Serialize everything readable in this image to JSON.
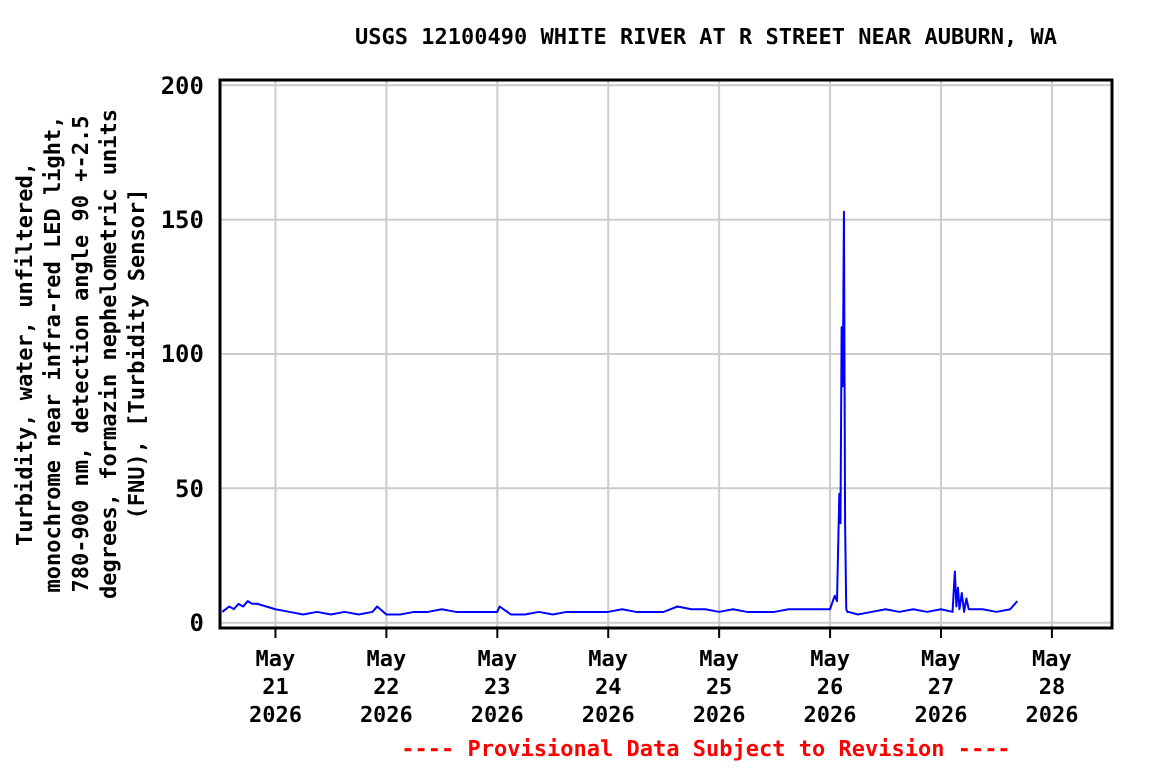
{
  "chart_data": {
    "type": "line",
    "title": "USGS 12100490 WHITE RIVER AT R STREET NEAR AUBURN, WA",
    "ylabel": "Turbidity, water, unfiltered,\nmonochrome near infra-red LED light,\n780-900 nm, detection angle 90 +-2.5\ndegrees, formazin nephelometric units\n(FNU), [Turbidity Sensor]",
    "annotations": [
      "---- Provisional Data Subject to Revision ----"
    ],
    "x": [
      "2026-05-20T12:30",
      "2026-05-20T14:00",
      "2026-05-20T15:00",
      "2026-05-20T16:00",
      "2026-05-20T17:00",
      "2026-05-20T18:00",
      "2026-05-20T19:00",
      "2026-05-20T20:00",
      "2026-05-20T22:00",
      "2026-05-21T00:00",
      "2026-05-21T03:00",
      "2026-05-21T06:00",
      "2026-05-21T09:00",
      "2026-05-21T12:00",
      "2026-05-21T15:00",
      "2026-05-21T18:00",
      "2026-05-21T21:00",
      "2026-05-21T22:00",
      "2026-05-22T00:00",
      "2026-05-22T03:00",
      "2026-05-22T06:00",
      "2026-05-22T09:00",
      "2026-05-22T12:00",
      "2026-05-22T15:00",
      "2026-05-22T18:00",
      "2026-05-22T21:00",
      "2026-05-23T00:00",
      "2026-05-23T00:30",
      "2026-05-23T03:00",
      "2026-05-23T06:00",
      "2026-05-23T09:00",
      "2026-05-23T12:00",
      "2026-05-23T15:00",
      "2026-05-23T18:00",
      "2026-05-23T21:00",
      "2026-05-24T00:00",
      "2026-05-24T03:00",
      "2026-05-24T06:00",
      "2026-05-24T09:00",
      "2026-05-24T12:00",
      "2026-05-24T15:00",
      "2026-05-24T18:00",
      "2026-05-24T21:00",
      "2026-05-25T00:00",
      "2026-05-25T03:00",
      "2026-05-25T06:00",
      "2026-05-25T09:00",
      "2026-05-25T12:00",
      "2026-05-25T15:00",
      "2026-05-25T18:00",
      "2026-05-25T21:00",
      "2026-05-26T00:00",
      "2026-05-26T01:00",
      "2026-05-26T01:30",
      "2026-05-26T02:00",
      "2026-05-26T02:15",
      "2026-05-26T02:30",
      "2026-05-26T02:45",
      "2026-05-26T03:00",
      "2026-05-26T03:15",
      "2026-05-26T03:30",
      "2026-05-26T03:45",
      "2026-05-26T04:00",
      "2026-05-26T06:00",
      "2026-05-26T09:00",
      "2026-05-26T12:00",
      "2026-05-26T15:00",
      "2026-05-26T18:00",
      "2026-05-26T21:00",
      "2026-05-27T00:00",
      "2026-05-27T02:30",
      "2026-05-27T03:00",
      "2026-05-27T03:20",
      "2026-05-27T03:40",
      "2026-05-27T04:00",
      "2026-05-27T04:30",
      "2026-05-27T05:00",
      "2026-05-27T05:30",
      "2026-05-27T06:00",
      "2026-05-27T07:00",
      "2026-05-27T09:00",
      "2026-05-27T12:00",
      "2026-05-27T15:00",
      "2026-05-27T16:30"
    ],
    "series": [
      {
        "color": "#0000ff",
        "values": [
          4,
          6,
          5,
          7,
          6,
          8,
          7,
          7,
          6,
          5,
          4,
          3,
          4,
          3,
          4,
          3,
          4,
          6,
          3,
          3,
          4,
          4,
          5,
          4,
          4,
          4,
          4,
          6,
          3,
          3,
          4,
          3,
          4,
          4,
          4,
          4,
          5,
          4,
          4,
          4,
          6,
          5,
          5,
          4,
          5,
          4,
          4,
          4,
          5,
          5,
          5,
          5,
          10,
          8,
          48,
          37,
          110,
          88,
          153,
          37,
          5,
          4,
          4,
          3,
          4,
          5,
          4,
          5,
          4,
          5,
          4,
          19,
          6,
          13,
          5,
          11,
          4,
          9,
          5,
          5,
          5,
          4,
          5,
          8
        ]
      }
    ],
    "ylim": [
      -2,
      202
    ],
    "yticks": [
      0,
      50,
      100,
      150,
      200
    ],
    "xlim": [
      "2026-05-20T12:00",
      "2026-05-28T13:00"
    ],
    "xticks": [
      {
        "value": "2026-05-21",
        "label": "May\n21\n2026"
      },
      {
        "value": "2026-05-22",
        "label": "May\n22\n2026"
      },
      {
        "value": "2026-05-23",
        "label": "May\n23\n2026"
      },
      {
        "value": "2026-05-24",
        "label": "May\n24\n2026"
      },
      {
        "value": "2026-05-25",
        "label": "May\n25\n2026"
      },
      {
        "value": "2026-05-26",
        "label": "May\n26\n2026"
      },
      {
        "value": "2026-05-27",
        "label": "May\n27\n2026"
      },
      {
        "value": "2026-05-28",
        "label": "May\n28\n2026"
      }
    ],
    "grid": true,
    "marker": "none",
    "line_style": "solid"
  }
}
